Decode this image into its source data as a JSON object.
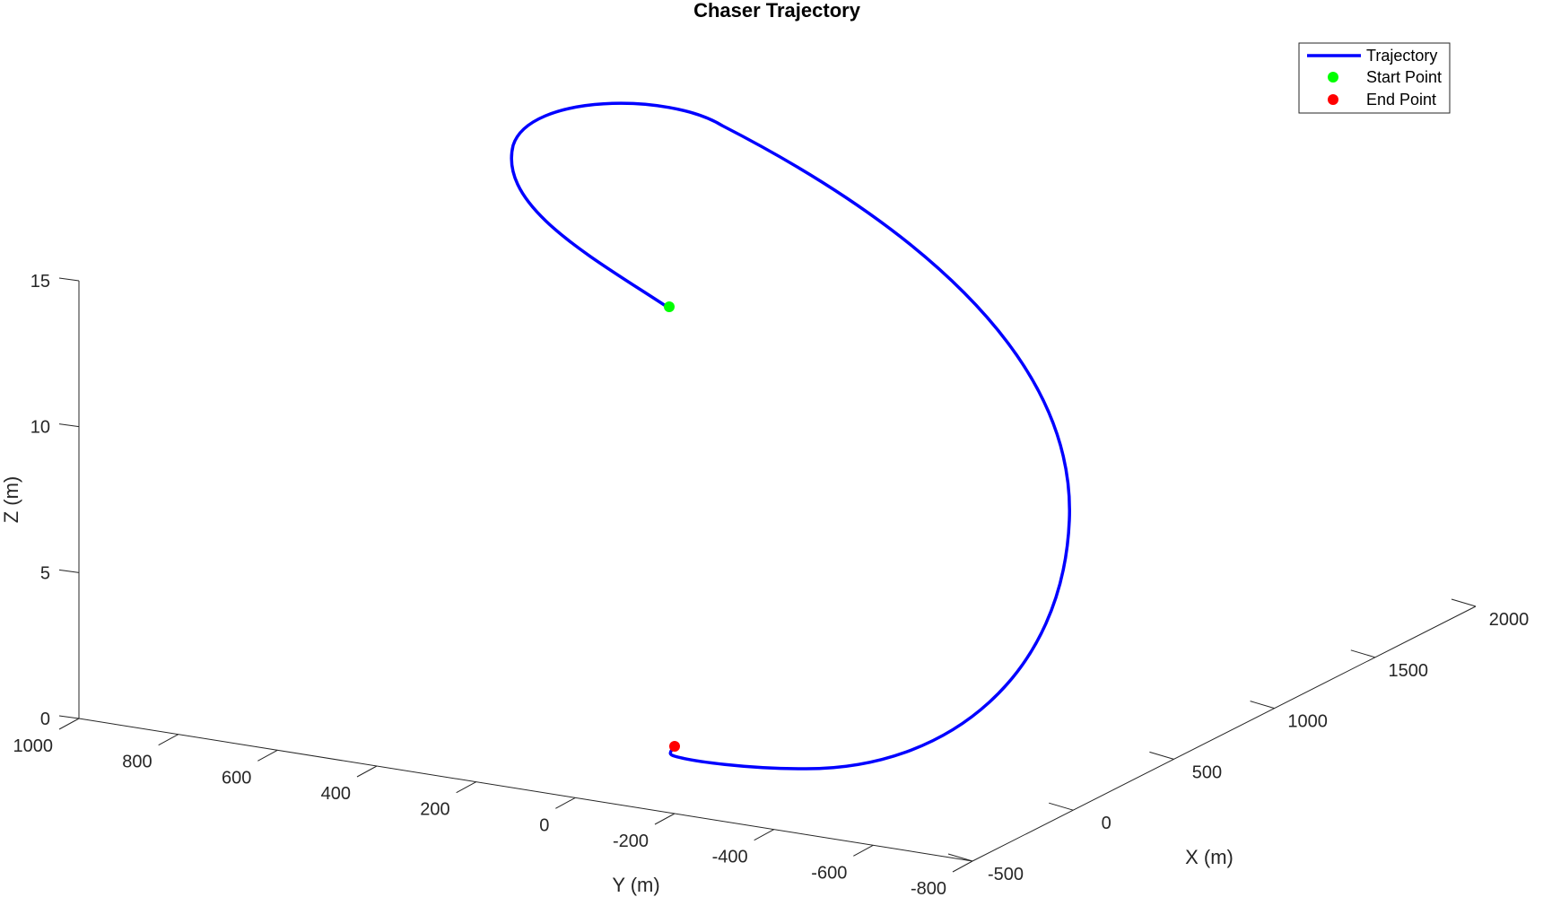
{
  "chart_data": {
    "type": "line3d",
    "title": "Chaser Trajectory",
    "xlabel": "X (m)",
    "ylabel": "Y (m)",
    "zlabel": "Z (m)",
    "xlim": [
      -500,
      2000
    ],
    "ylim": [
      -800,
      1000
    ],
    "zlim": [
      0,
      15
    ],
    "xticks": [
      -500,
      0,
      500,
      1000,
      1500,
      2000
    ],
    "yticks": [
      1000,
      800,
      600,
      400,
      200,
      0,
      -200,
      -400,
      -600,
      -800
    ],
    "zticks": [
      0,
      5,
      10,
      15
    ],
    "grid": false,
    "legend_position": "top-right",
    "colors": {
      "trajectory": "#0000ff",
      "start": "#00ff00",
      "end": "#ff0000"
    },
    "series": [
      {
        "name": "Trajectory",
        "style": "line"
      },
      {
        "name": "Start Point",
        "style": "marker"
      },
      {
        "name": "End Point",
        "style": "marker"
      }
    ]
  }
}
